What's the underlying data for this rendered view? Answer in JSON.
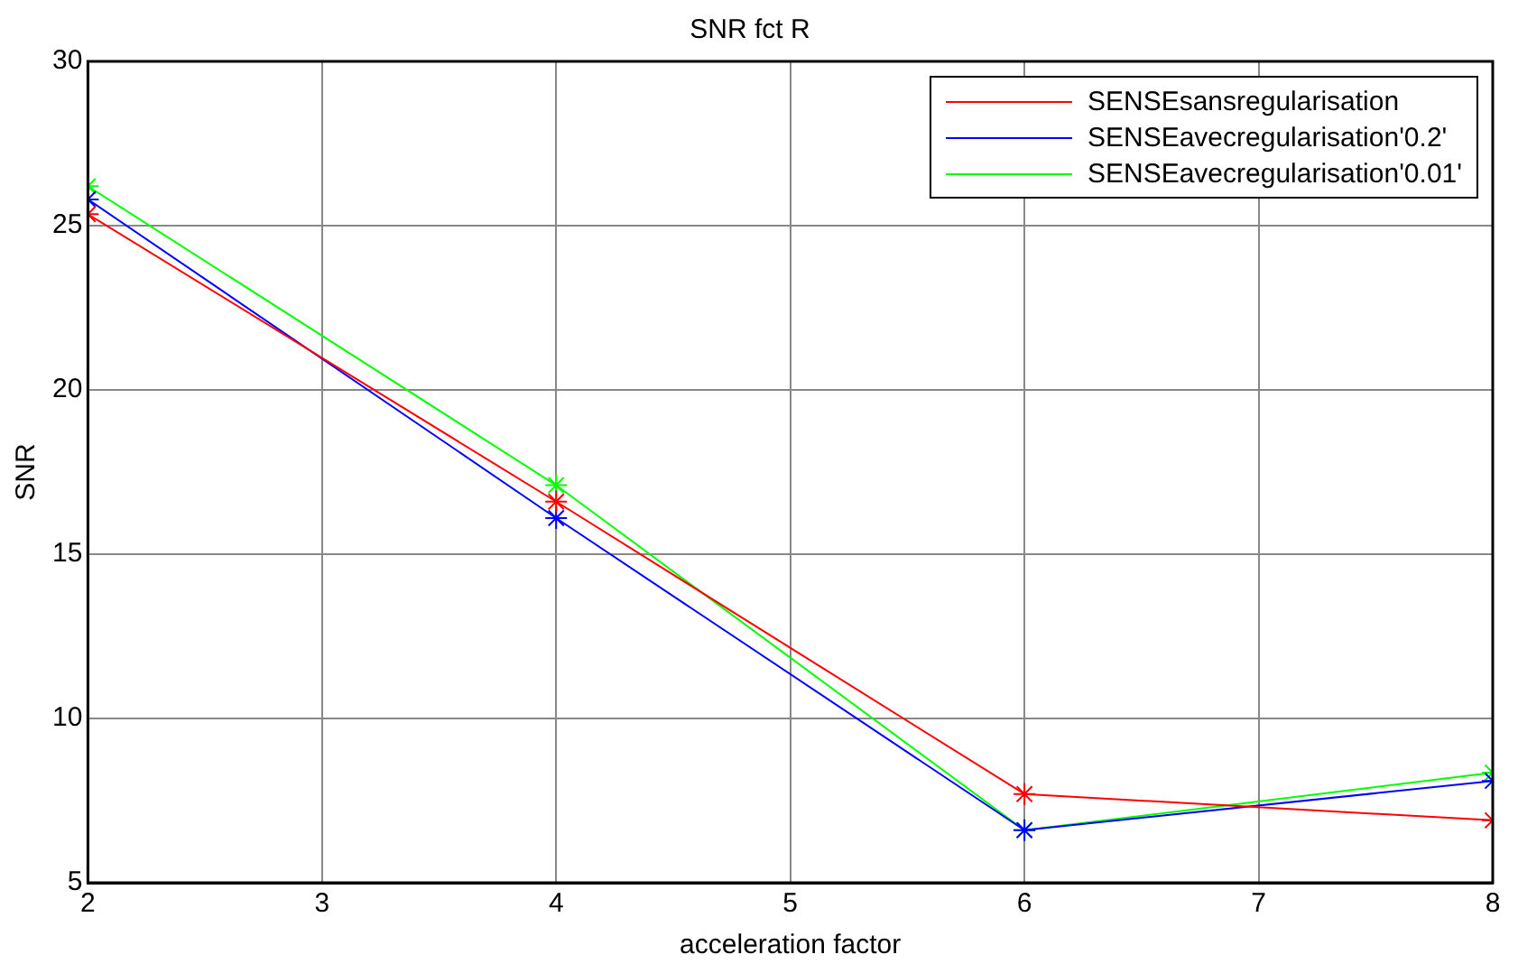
{
  "chart_data": {
    "type": "line",
    "title": "SNR fct R",
    "xlabel": "acceleration factor",
    "ylabel": "SNR",
    "x": [
      2,
      4,
      6,
      8
    ],
    "series": [
      {
        "name": "SENSEsansregularisation",
        "color": "#ff0000",
        "values": [
          25.35,
          16.6,
          7.7,
          6.9
        ]
      },
      {
        "name": "SENSEavecregularisation'0.2'",
        "color": "#0000ff",
        "values": [
          25.8,
          16.1,
          6.6,
          8.1
        ]
      },
      {
        "name": "SENSEavecregularisation'0.01'",
        "color": "#00ff00",
        "values": [
          26.2,
          17.1,
          6.6,
          8.35
        ]
      }
    ],
    "xlim": [
      2,
      8
    ],
    "xticks": [
      2,
      3,
      4,
      5,
      6,
      7,
      8
    ],
    "ylim": [
      5,
      30
    ],
    "yticks": [
      5,
      10,
      15,
      20,
      25,
      30
    ],
    "grid": true,
    "legend": "top right",
    "marker": "cross",
    "line_style": "solid"
  }
}
